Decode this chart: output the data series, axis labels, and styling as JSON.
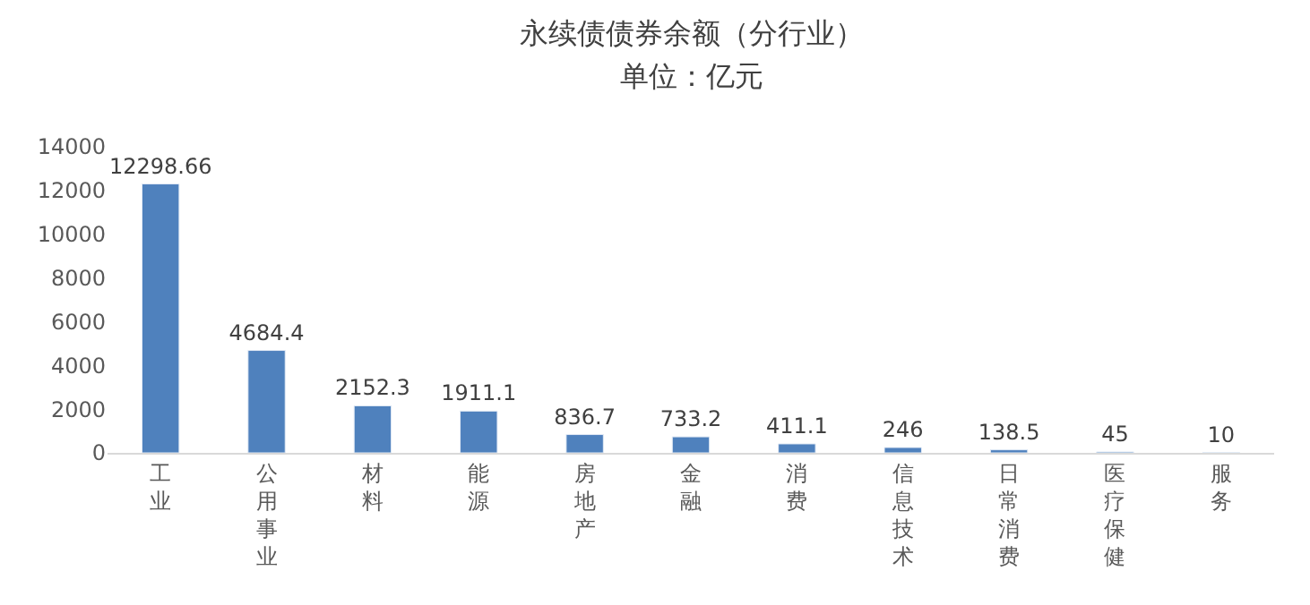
{
  "chart_data": {
    "type": "bar",
    "title": "永续债债券余额（分行业）",
    "subtitle": "单位：亿元",
    "categories": [
      "工业",
      "公用事业",
      "材料",
      "能源",
      "房地产",
      "金融",
      "消费",
      "信息技术",
      "日常消费",
      "医疗保健",
      "服务"
    ],
    "values": [
      12298.66,
      4684.4,
      2152.3,
      1911.1,
      836.7,
      733.2,
      411.1,
      246,
      138.5,
      45,
      10
    ],
    "color": "#4f81bd",
    "ylim": [
      0,
      14000
    ],
    "yticks": [
      0,
      2000,
      4000,
      6000,
      8000,
      10000,
      12000,
      14000
    ],
    "data_labels": true,
    "grid": false,
    "legend": false
  }
}
